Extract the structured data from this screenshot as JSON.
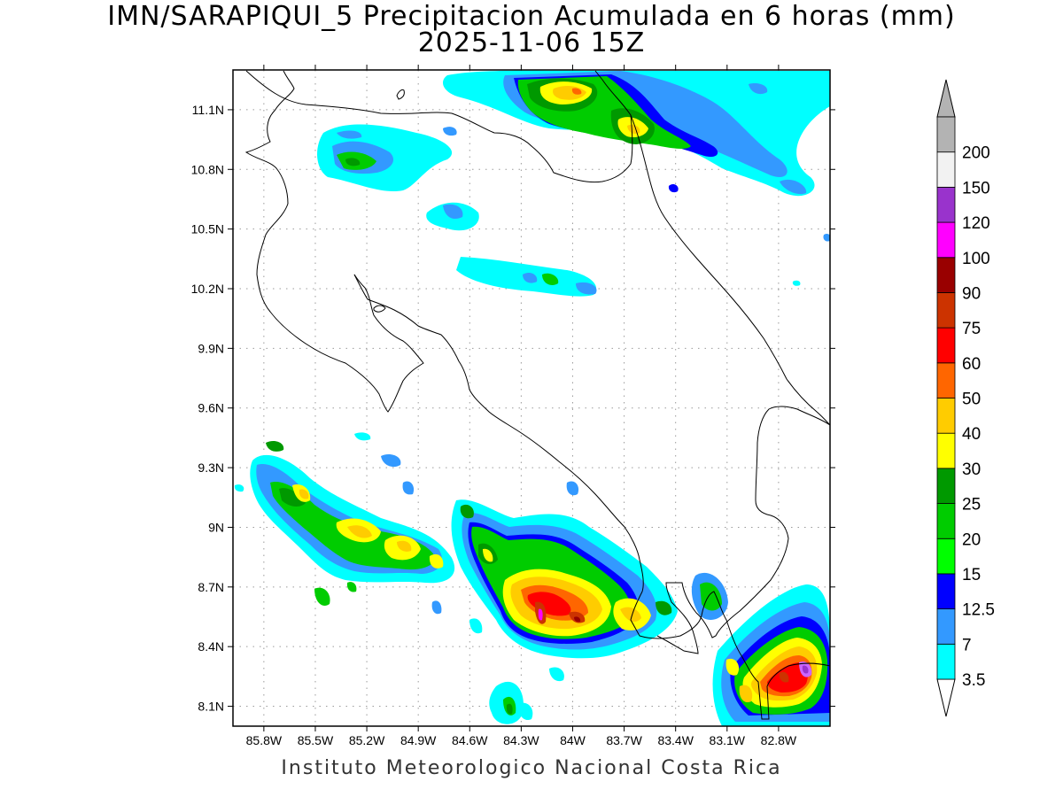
{
  "title": {
    "line1": "IMN/SARAPIQUI_5 Precipitacion Acumulada en 6 horas (mm)",
    "line2": "2025-11-06 15Z"
  },
  "footer": "Instituto Meteorologico Nacional Costa Rica",
  "map": {
    "lon_range": [
      -85.98,
      -82.5
    ],
    "lat_range": [
      8.0,
      11.3
    ],
    "lon_ticks": [
      {
        "value": -85.8,
        "label": "85.8W"
      },
      {
        "value": -85.5,
        "label": "85.5W"
      },
      {
        "value": -85.2,
        "label": "85.2W"
      },
      {
        "value": -84.9,
        "label": "84.9W"
      },
      {
        "value": -84.6,
        "label": "84.6W"
      },
      {
        "value": -84.3,
        "label": "84.3W"
      },
      {
        "value": -84.0,
        "label": "84W"
      },
      {
        "value": -83.7,
        "label": "83.7W"
      },
      {
        "value": -83.4,
        "label": "83.4W"
      },
      {
        "value": -83.1,
        "label": "83.1W"
      },
      {
        "value": -82.8,
        "label": "82.8W"
      }
    ],
    "lat_ticks": [
      {
        "value": 11.1,
        "label": "11.1N"
      },
      {
        "value": 10.8,
        "label": "10.8N"
      },
      {
        "value": 10.5,
        "label": "10.5N"
      },
      {
        "value": 10.2,
        "label": "10.2N"
      },
      {
        "value": 9.9,
        "label": "9.9N"
      },
      {
        "value": 9.6,
        "label": "9.6N"
      },
      {
        "value": 9.3,
        "label": "9.3N"
      },
      {
        "value": 9.0,
        "label": "9N"
      },
      {
        "value": 8.7,
        "label": "8.7N"
      },
      {
        "value": 8.4,
        "label": "8.4N"
      },
      {
        "value": 8.1,
        "label": "8.1N"
      }
    ],
    "grid": true,
    "projection": "lon/lat"
  },
  "colorbar": {
    "placement": "right",
    "levels": [
      {
        "label": "3.5",
        "color": "#00ffff"
      },
      {
        "label": "7",
        "color": "#3399ff"
      },
      {
        "label": "12.5",
        "color": "#0000ff"
      },
      {
        "label": "15",
        "color": "#00ff00"
      },
      {
        "label": "20",
        "color": "#00cc00"
      },
      {
        "label": "25",
        "color": "#009900"
      },
      {
        "label": "30",
        "color": "#ffff00"
      },
      {
        "label": "40",
        "color": "#ffcc00"
      },
      {
        "label": "50",
        "color": "#ff6600"
      },
      {
        "label": "60",
        "color": "#ff0000"
      },
      {
        "label": "75",
        "color": "#cc3300"
      },
      {
        "label": "90",
        "color": "#990000"
      },
      {
        "label": "100",
        "color": "#ff00ff"
      },
      {
        "label": "120",
        "color": "#9933cc"
      },
      {
        "label": "150",
        "color": "#f2f2f2"
      },
      {
        "label": "200",
        "color": "#b3b3b3"
      }
    ],
    "low_triangle_color": "#ffffff",
    "high_triangle_color": "#b3b3b3"
  }
}
